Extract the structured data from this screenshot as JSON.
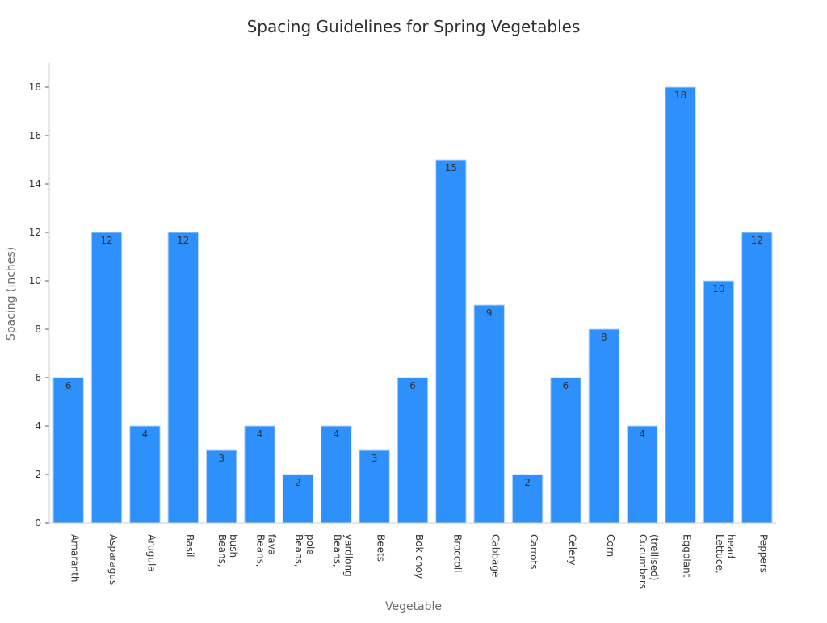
{
  "chart_data": {
    "type": "bar",
    "title": "Spacing Guidelines for Spring Vegetables",
    "xlabel": "Vegetable",
    "ylabel": "Spacing (inches)",
    "ylim": [
      0,
      19
    ],
    "yticks": [
      "0",
      "2",
      "4",
      "6",
      "8",
      "10",
      "12",
      "14",
      "16",
      "18"
    ],
    "grid": false,
    "bar_color": "#2e90fa",
    "categories": [
      "Amaranth",
      "Asparagus",
      "Arugula",
      "Basil",
      "Beans,\nbush",
      "Beans,\nfava",
      "Beans,\npole",
      "Beans,\nyardlong",
      "Beets",
      "Bok choy",
      "Broccoli",
      "Cabbage",
      "Carrots",
      "Celery",
      "Corn",
      "Cucumbers\n(trellised)",
      "Eggplant",
      "Lettuce,\nhead",
      "Peppers"
    ],
    "values": [
      6,
      12,
      4,
      12,
      3,
      4,
      2,
      4,
      3,
      6,
      15,
      9,
      2,
      6,
      8,
      4,
      18,
      10,
      12
    ],
    "data_labels": [
      "6",
      "12",
      "4",
      "12",
      "3",
      "4",
      "2",
      "4",
      "3",
      "6",
      "15",
      "9",
      "2",
      "6",
      "8",
      "4",
      "18",
      "10",
      "12"
    ]
  }
}
